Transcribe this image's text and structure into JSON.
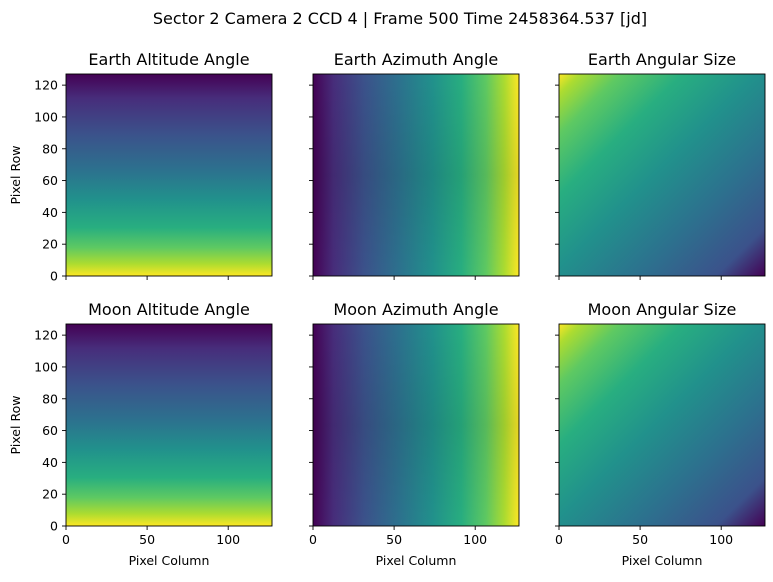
{
  "figure": {
    "suptitle": "Sector 2 Camera 2 CCD 4 | Frame 500 Time 2458364.537 [jd]"
  },
  "colormap": "viridis",
  "chart_data": [
    {
      "type": "heatmap",
      "title": "Earth Altitude Angle",
      "xlabel": "",
      "ylabel": "Pixel Row",
      "xlim": [
        0,
        127
      ],
      "ylim": [
        0,
        127
      ],
      "xticks": [
        0,
        50,
        100
      ],
      "yticks": [
        0,
        20,
        40,
        60,
        80,
        100,
        120
      ],
      "show_xtick_labels": false,
      "show_ytick_labels": true,
      "gradient": {
        "direction": "vertical",
        "low_at": "top",
        "high_at": "bottom"
      }
    },
    {
      "type": "heatmap",
      "title": "Earth Azimuth Angle",
      "xlabel": "",
      "ylabel": "",
      "xlim": [
        0,
        127
      ],
      "ylim": [
        0,
        127
      ],
      "xticks": [
        0,
        50,
        100
      ],
      "yticks": [
        0,
        20,
        40,
        60,
        80,
        100,
        120
      ],
      "show_xtick_labels": false,
      "show_ytick_labels": false,
      "gradient": {
        "direction": "horizontal-curved",
        "low_at": "left",
        "high_at": "right"
      }
    },
    {
      "type": "heatmap",
      "title": "Earth Angular Size",
      "xlabel": "",
      "ylabel": "",
      "xlim": [
        0,
        127
      ],
      "ylim": [
        0,
        127
      ],
      "xticks": [
        0,
        50,
        100
      ],
      "yticks": [
        0,
        20,
        40,
        60,
        80,
        100,
        120
      ],
      "show_xtick_labels": false,
      "show_ytick_labels": false,
      "gradient": {
        "direction": "diagonal",
        "low_at": "bottom-right",
        "high_at": "top-left"
      }
    },
    {
      "type": "heatmap",
      "title": "Moon Altitude Angle",
      "xlabel": "Pixel Column",
      "ylabel": "Pixel Row",
      "xlim": [
        0,
        127
      ],
      "ylim": [
        0,
        127
      ],
      "xticks": [
        0,
        50,
        100
      ],
      "yticks": [
        0,
        20,
        40,
        60,
        80,
        100,
        120
      ],
      "show_xtick_labels": true,
      "show_ytick_labels": true,
      "gradient": {
        "direction": "vertical",
        "low_at": "top",
        "high_at": "bottom"
      }
    },
    {
      "type": "heatmap",
      "title": "Moon Azimuth Angle",
      "xlabel": "Pixel Column",
      "ylabel": "",
      "xlim": [
        0,
        127
      ],
      "ylim": [
        0,
        127
      ],
      "xticks": [
        0,
        50,
        100
      ],
      "yticks": [
        0,
        20,
        40,
        60,
        80,
        100,
        120
      ],
      "show_xtick_labels": true,
      "show_ytick_labels": false,
      "gradient": {
        "direction": "horizontal-curved",
        "low_at": "left",
        "high_at": "right"
      }
    },
    {
      "type": "heatmap",
      "title": "Moon Angular Size",
      "xlabel": "Pixel Column",
      "ylabel": "",
      "xlim": [
        0,
        127
      ],
      "ylim": [
        0,
        127
      ],
      "xticks": [
        0,
        50,
        100
      ],
      "yticks": [
        0,
        20,
        40,
        60,
        80,
        100,
        120
      ],
      "show_xtick_labels": true,
      "show_ytick_labels": false,
      "gradient": {
        "direction": "diagonal",
        "low_at": "bottom-right",
        "high_at": "top-left"
      }
    }
  ]
}
